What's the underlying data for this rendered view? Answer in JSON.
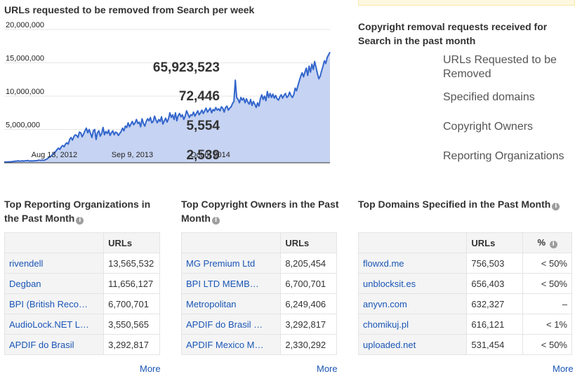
{
  "chart": {
    "title": "URLs requested to be removed from Search per week"
  },
  "chart_data": {
    "type": "area",
    "title": "URLs requested to be removed from Search per week",
    "xlabel": "",
    "ylabel": "",
    "ylim": [
      0,
      20000000
    ],
    "y_ticks": [
      "20,000,000",
      "15,000,000",
      "10,000,000",
      "5,000,000"
    ],
    "y_tick_values": [
      20000000,
      15000000,
      10000000,
      5000000
    ],
    "x_ticks": [
      "Aug 13, 2012",
      "Sep 9, 2013",
      "Oct 6, 2014"
    ],
    "x_tick_weeks": [
      36,
      92,
      148
    ],
    "grid": true,
    "series_color": "#3366cc",
    "fill_color": "#c6d3f2",
    "values": [
      120000,
      120000,
      120000,
      150000,
      150000,
      150000,
      200000,
      200000,
      250000,
      250000,
      300000,
      250000,
      250000,
      300000,
      250000,
      300000,
      300000,
      350000,
      250000,
      300000,
      250000,
      300000,
      300000,
      300000,
      350000,
      400000,
      350000,
      400000,
      350000,
      400000,
      500000,
      600000,
      800000,
      900000,
      1100000,
      1300000,
      1500000,
      1700000,
      2000000,
      2200000,
      2000000,
      2400000,
      2600000,
      2400000,
      2800000,
      3000000,
      2800000,
      3500000,
      3800000,
      3400000,
      3900000,
      4200000,
      4100000,
      3800000,
      4600000,
      4500000,
      3900000,
      4300000,
      4800000,
      5200000,
      4500000,
      5000000,
      4400000,
      3800000,
      4800000,
      5000000,
      3500000,
      4500000,
      4800000,
      4000000,
      4400000,
      5300000,
      4200000,
      4700000,
      4400000,
      4900000,
      4100000,
      4500000,
      4800000,
      4200000,
      4600000,
      4500000,
      4100000,
      4400000,
      4700000,
      5200000,
      4800000,
      5500000,
      5300000,
      6000000,
      5400000,
      5800000,
      6200000,
      5700000,
      6000000,
      6500000,
      5900000,
      6100000,
      5400000,
      6600000,
      5900000,
      5500000,
      6200000,
      6600000,
      6300000,
      6800000,
      6000000,
      6200000,
      7000000,
      6400000,
      6000000,
      6500000,
      6200000,
      6900000,
      5800000,
      6300000,
      6700000,
      6100000,
      6600000,
      7500000,
      6800000,
      7200000,
      6500000,
      7500000,
      6300000,
      7100000,
      7400000,
      6900000,
      7200000,
      6500000,
      7000000,
      7800000,
      7300000,
      6800000,
      7200000,
      7100000,
      7600000,
      7000000,
      7400000,
      7800000,
      7200000,
      7500000,
      7900000,
      7400000,
      7800000,
      8200000,
      7600000,
      7900000,
      8200000,
      7500000,
      8000000,
      7800000,
      8300000,
      7900000,
      8100000,
      7800000,
      8400000,
      8200000,
      7600000,
      8300000,
      8500000,
      7900000,
      8200000,
      8400000,
      8900000,
      9200000,
      12400000,
      9800000,
      9500000,
      9000000,
      9800000,
      9400000,
      9700000,
      9000000,
      9600000,
      9100000,
      8800000,
      9500000,
      8600000,
      9200000,
      8800000,
      8300000,
      9000000,
      8500000,
      9600000,
      10200000,
      9500000,
      10000000,
      9300000,
      10700000,
      9800000,
      10400000,
      9800000,
      10300000,
      9700000,
      10100000,
      9600000,
      9400000,
      9900000,
      10200000,
      9700000,
      10100000,
      10400000,
      9800000,
      10000000,
      10600000,
      10100000,
      9800000,
      10200000,
      11200000,
      10800000,
      11600000,
      12300000,
      13000000,
      13500000,
      12900000,
      13600000,
      14200000,
      13100000,
      14500000,
      13600000,
      14800000,
      14000000,
      15200000,
      14300000,
      13400000,
      12600000,
      13000000,
      13800000,
      14500000,
      15300000,
      14900000,
      15800000,
      16200000,
      16600000
    ]
  },
  "summary": {
    "title": "Copyright removal requests received for Search in the past month",
    "items": [
      {
        "value": "65,923,523",
        "label": "URLs Requested to be Removed"
      },
      {
        "value": "72,446",
        "label": "Specified domains"
      },
      {
        "value": "5,554",
        "label": "Copyright Owners"
      },
      {
        "value": "2,539",
        "label": "Reporting Organizations"
      }
    ]
  },
  "panels": {
    "reporting_orgs": {
      "title": "Top Reporting Organizations in the Past Month",
      "urls_header": "URLs",
      "more": "More",
      "rows": [
        {
          "name": "rivendell",
          "urls": "13,565,532"
        },
        {
          "name": "Degban",
          "urls": "11,656,127"
        },
        {
          "name": "BPI (British Reco…",
          "urls": "6,700,701"
        },
        {
          "name": "AudioLock.NET L…",
          "urls": "3,550,565"
        },
        {
          "name": "APDIF do Brasil",
          "urls": "3,292,817"
        }
      ]
    },
    "copyright_owners": {
      "title": "Top Copyright Owners in the Past Month",
      "urls_header": "URLs",
      "more": "More",
      "rows": [
        {
          "name": "MG Premium Ltd",
          "urls": "8,205,454"
        },
        {
          "name": "BPI LTD MEMB…",
          "urls": "6,700,701"
        },
        {
          "name": "Metropolitan",
          "urls": "6,249,406"
        },
        {
          "name": "APDIF do Brasil …",
          "urls": "3,292,817"
        },
        {
          "name": "APDIF Mexico M…",
          "urls": "2,330,292"
        }
      ]
    },
    "domains": {
      "title": "Top Domains Specified in the Past Month",
      "urls_header": "URLs",
      "pct_header": "%",
      "more": "More",
      "rows": [
        {
          "name": "flowxd.me",
          "urls": "756,503",
          "pct": "< 50%"
        },
        {
          "name": "unblocksit.es",
          "urls": "656,403",
          "pct": "< 50%"
        },
        {
          "name": "anyvn.com",
          "urls": "632,327",
          "pct": "–"
        },
        {
          "name": "chomikuj.pl",
          "urls": "616,121",
          "pct": "< 1%"
        },
        {
          "name": "uploaded.net",
          "urls": "531,454",
          "pct": "< 50%"
        }
      ]
    }
  },
  "info_icon_glyph": "i"
}
